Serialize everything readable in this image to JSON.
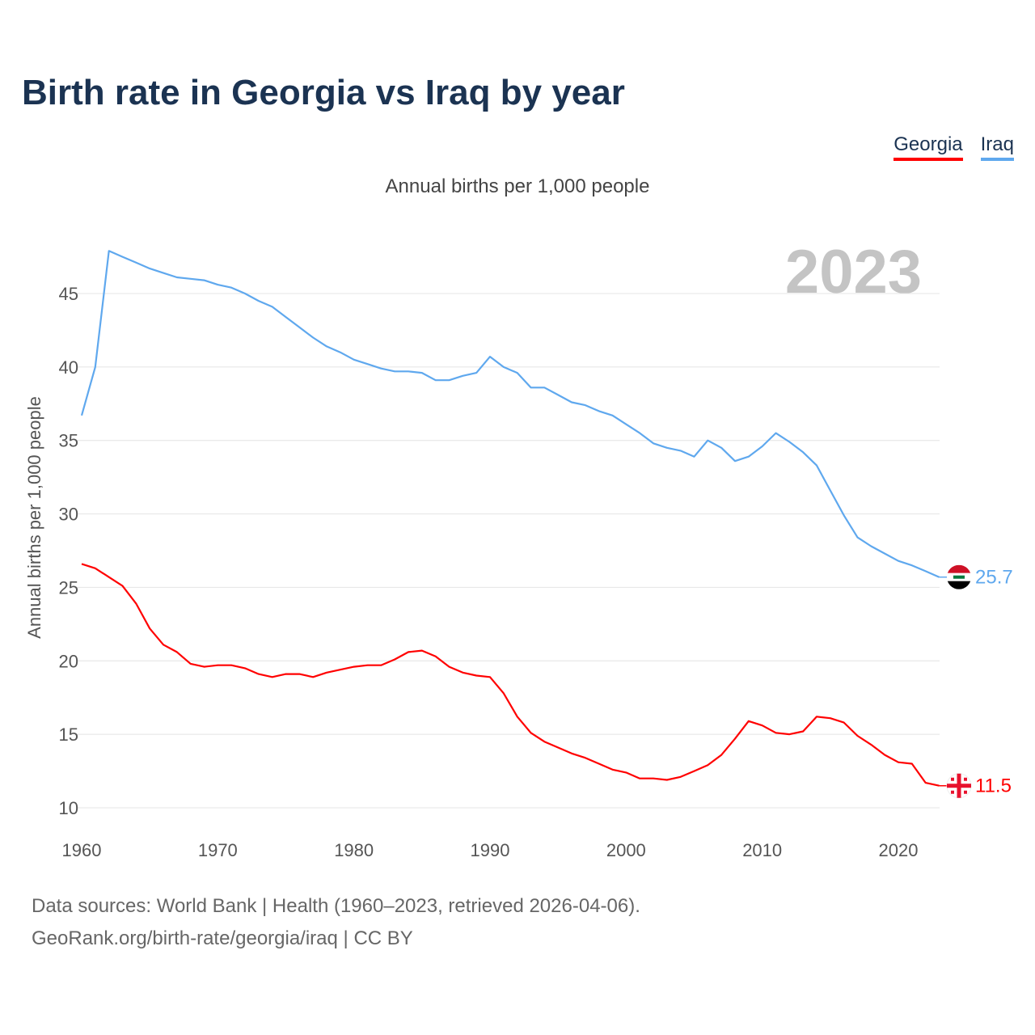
{
  "title": "Birth rate in Georgia vs Iraq by year",
  "subtitle": "Annual births per 1,000 people",
  "year_watermark": "2023",
  "footer": {
    "line1": "Data sources: World Bank | Health (1960–2023, retrieved 2026-04-06).",
    "line2": "GeoRank.org/birth-rate/georgia/iraq | CC BY"
  },
  "chart_data": {
    "type": "line",
    "title": "Birth rate in Georgia vs Iraq by year",
    "ylabel": "Annual births per 1,000 people",
    "xlabel": "",
    "xlim": [
      1960,
      2023
    ],
    "ylim": [
      10,
      48
    ],
    "yticks": [
      10,
      15,
      20,
      25,
      30,
      35,
      40,
      45
    ],
    "xticks": [
      1960,
      1970,
      1980,
      1990,
      2000,
      2010,
      2020
    ],
    "grid": true,
    "legend_placement": "top-right",
    "x_start": 1960,
    "series": [
      {
        "name": "Georgia",
        "color": "#ff0000",
        "end_label": "11.5",
        "icon": "georgia-flag-icon",
        "values": [
          26.6,
          26.3,
          25.7,
          25.1,
          23.9,
          22.2,
          21.1,
          20.6,
          19.8,
          19.6,
          19.7,
          19.7,
          19.5,
          19.1,
          18.9,
          19.1,
          19.1,
          18.9,
          19.2,
          19.4,
          19.6,
          19.7,
          19.7,
          20.1,
          20.6,
          20.7,
          20.3,
          19.6,
          19.2,
          19.0,
          18.9,
          17.8,
          16.2,
          15.1,
          14.5,
          14.1,
          13.7,
          13.4,
          13.0,
          12.6,
          12.4,
          12.0,
          12.0,
          11.9,
          12.1,
          12.5,
          12.9,
          13.6,
          14.7,
          15.9,
          15.6,
          15.1,
          15.0,
          15.2,
          16.2,
          16.1,
          15.8,
          14.9,
          14.3,
          13.6,
          13.1,
          13.0,
          11.7,
          11.5
        ]
      },
      {
        "name": "Iraq",
        "color": "#5fa8ee",
        "end_label": "25.7",
        "icon": "iraq-flag-icon",
        "values": [
          36.7,
          40.0,
          47.9,
          47.5,
          47.1,
          46.7,
          46.4,
          46.1,
          46.0,
          45.9,
          45.6,
          45.4,
          45.0,
          44.5,
          44.1,
          43.4,
          42.7,
          42.0,
          41.4,
          41.0,
          40.5,
          40.2,
          39.9,
          39.7,
          39.7,
          39.6,
          39.1,
          39.1,
          39.4,
          39.6,
          40.7,
          40.0,
          39.6,
          38.6,
          38.6,
          38.1,
          37.6,
          37.4,
          37.0,
          36.7,
          36.1,
          35.5,
          34.8,
          34.5,
          34.3,
          33.9,
          35.0,
          34.5,
          33.6,
          33.9,
          34.6,
          35.5,
          34.9,
          34.2,
          33.3,
          31.6,
          29.9,
          28.4,
          27.8,
          27.3,
          26.8,
          26.5,
          26.1,
          25.7
        ]
      }
    ]
  }
}
